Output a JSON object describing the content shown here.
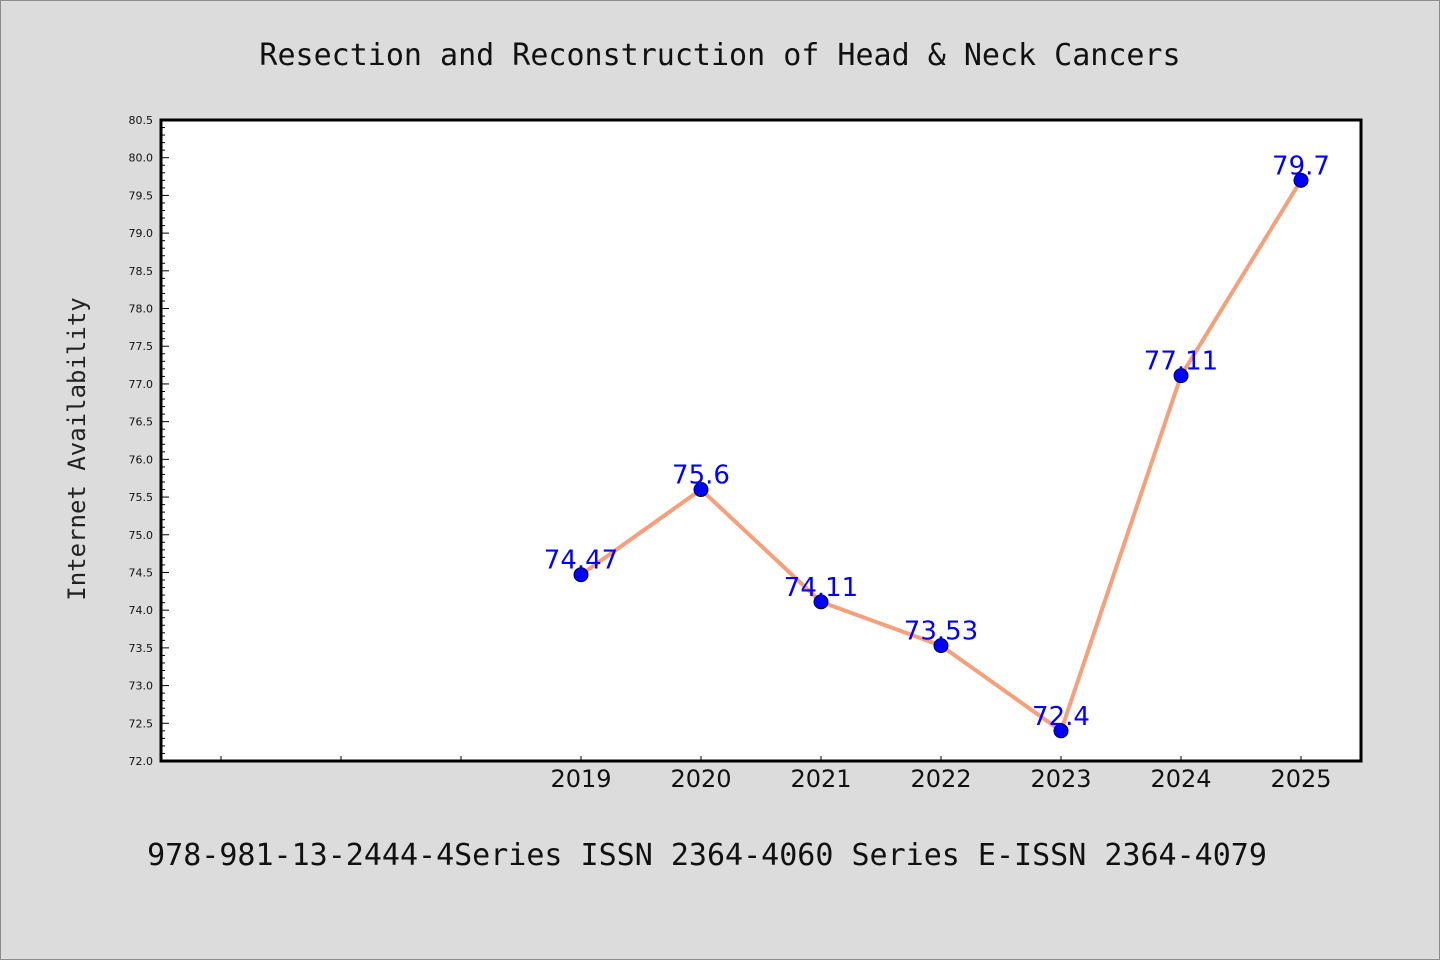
{
  "chart_data": {
    "type": "line",
    "title": "Resection and Reconstruction of Head & Neck Cancers",
    "xlabel": "",
    "ylabel": "Internet Availability",
    "footer": "978-981-13-2444-4Series ISSN 2364-4060 Series E-ISSN 2364-4079",
    "categories": [
      "2019",
      "2020",
      "2021",
      "2022",
      "2023",
      "2024",
      "2025"
    ],
    "series": [
      {
        "values": [
          74.47,
          75.6,
          74.11,
          73.53,
          72.4,
          77.11,
          79.7
        ],
        "data_labels": [
          "74.47",
          "75.6",
          "74.11",
          "73.53",
          "72.4",
          "77.11",
          "79.7"
        ]
      }
    ],
    "ylim": [
      72.0,
      80.5
    ],
    "yticks": [
      "72.0",
      "72.5",
      "73.0",
      "73.5",
      "74.0",
      "74.5",
      "75.0",
      "75.5",
      "76.0",
      "76.5",
      "77.0",
      "77.5",
      "78.0",
      "78.5",
      "79.0",
      "79.5",
      "80.0",
      "80.5"
    ],
    "x_slots_before_first": 3,
    "grid": false,
    "colors": {
      "background": "#dcdcdc",
      "plot_background": "#ffffff",
      "line": "#f5a07a",
      "marker": "#0000ff",
      "data_label": "#0000ff"
    }
  }
}
